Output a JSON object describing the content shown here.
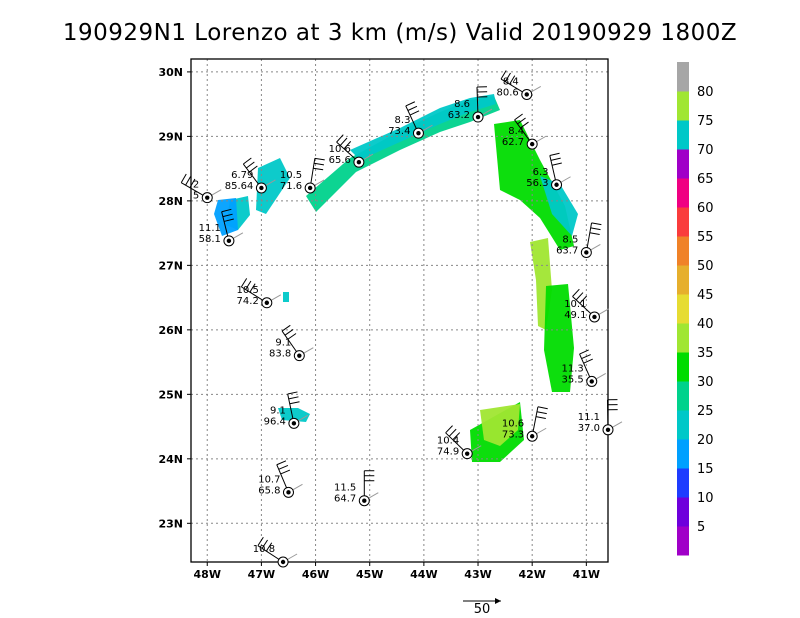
{
  "chart_data": {
    "type": "scatter",
    "title": "190929N1 Lorenzo at 3 km (m/s) Valid 20190929  1800Z",
    "x_ticks": [
      "48W",
      "47W",
      "46W",
      "45W",
      "44W",
      "43W",
      "42W",
      "41W"
    ],
    "x_tick_values": [
      -48,
      -47,
      -46,
      -45,
      -44,
      -43,
      -42,
      -41
    ],
    "y_ticks": [
      "23N",
      "24N",
      "25N",
      "26N",
      "27N",
      "28N",
      "29N",
      "30N"
    ],
    "y_tick_values": [
      23,
      24,
      25,
      26,
      27,
      28,
      29,
      30
    ],
    "xlim": [
      -48.3,
      -40.6
    ],
    "ylim": [
      22.4,
      30.2
    ],
    "grid": true,
    "reference_vector_label": "50",
    "colorbar": {
      "labels": [
        "5",
        "10",
        "15",
        "20",
        "25",
        "30",
        "35",
        "40",
        "45",
        "50",
        "55",
        "60",
        "65",
        "70",
        "75",
        "80"
      ],
      "colors": [
        "#a000c8",
        "#6e00dc",
        "#1e3cff",
        "#00a0ff",
        "#00c8c8",
        "#00d28c",
        "#00dc00",
        "#a0e632",
        "#e6dc32",
        "#e6af2d",
        "#f08228",
        "#fa3c3c",
        "#f00082",
        "#a000c8",
        "#00c8c8",
        "#a0e632",
        "#a6a6a6"
      ]
    },
    "points": [
      {
        "lon": -48.0,
        "lat": 28.05,
        "label": "2",
        "label2": "5"
      },
      {
        "lon": -47.0,
        "lat": 28.2,
        "label": "6.79",
        "label2": "85.64"
      },
      {
        "lon": -47.6,
        "lat": 27.38,
        "label": "11.1",
        "label2": "58.1"
      },
      {
        "lon": -46.1,
        "lat": 28.2,
        "label": "10.5",
        "label2": "71.6"
      },
      {
        "lon": -45.2,
        "lat": 28.6,
        "label": "10.6",
        "label2": "65.6"
      },
      {
        "lon": -44.1,
        "lat": 29.05,
        "label": "8.3",
        "label2": "73.4"
      },
      {
        "lon": -43.0,
        "lat": 29.3,
        "label": "8.6",
        "label2": "63.2"
      },
      {
        "lon": -42.1,
        "lat": 29.65,
        "label": "8.4",
        "label2": "80.6"
      },
      {
        "lon": -42.0,
        "lat": 28.88,
        "label": "8.4",
        "label2": "62.7"
      },
      {
        "lon": -41.55,
        "lat": 28.25,
        "label": "6.3",
        "label2": "56.3"
      },
      {
        "lon": -41.0,
        "lat": 27.2,
        "label": "8.5",
        "label2": "63.7"
      },
      {
        "lon": -40.85,
        "lat": 26.2,
        "label": "10.1",
        "label2": "49.1"
      },
      {
        "lon": -40.9,
        "lat": 25.2,
        "label": "11.3",
        "label2": "35.5"
      },
      {
        "lon": -40.6,
        "lat": 24.45,
        "label": "11.1",
        "label2": "37.0"
      },
      {
        "lon": -46.9,
        "lat": 26.42,
        "label": "10.5",
        "label2": "74.2"
      },
      {
        "lon": -46.3,
        "lat": 25.6,
        "label": "9.1",
        "label2": "83.8"
      },
      {
        "lon": -46.4,
        "lat": 24.55,
        "label": "9.1",
        "label2": "96.4"
      },
      {
        "lon": -42.0,
        "lat": 24.35,
        "label": "10.6",
        "label2": "73.3"
      },
      {
        "lon": -43.2,
        "lat": 24.08,
        "label": "10.4",
        "label2": "74.9"
      },
      {
        "lon": -46.5,
        "lat": 23.48,
        "label": "10.7",
        "label2": "65.8"
      },
      {
        "lon": -45.1,
        "lat": 23.35,
        "label": "11.5",
        "label2": "64.7"
      },
      {
        "lon": -46.6,
        "lat": 22.4,
        "label": "10.8",
        "label2": ""
      }
    ]
  }
}
